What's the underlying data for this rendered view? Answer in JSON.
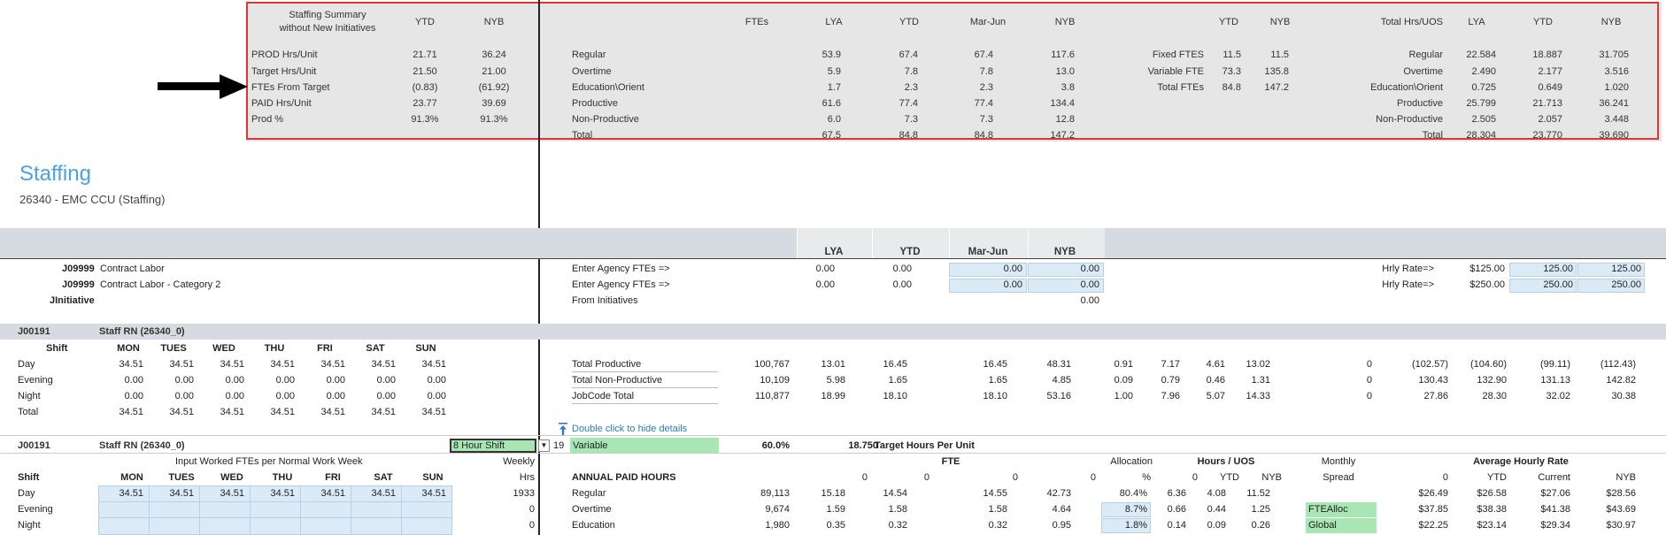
{
  "summary": {
    "left": {
      "title_line1": "Staffing Summary",
      "title_line2": "without New Initiatives",
      "col_ytd": "YTD",
      "col_nyb": "NYB",
      "rows": [
        {
          "label": "PROD Hrs/Unit",
          "ytd": "21.71",
          "nyb": "36.24"
        },
        {
          "label": "Target Hrs/Unit",
          "ytd": "21.50",
          "nyb": "21.00"
        },
        {
          "label": "FTEs From Target",
          "ytd": "(0.83)",
          "nyb": "(61.92)"
        },
        {
          "label": "PAID Hrs/Unit",
          "ytd": "23.77",
          "nyb": "39.69"
        },
        {
          "label": "Prod %",
          "ytd": "91.3%",
          "nyb": "91.3%"
        }
      ]
    },
    "ftes": {
      "headers": [
        "FTEs",
        "LYA",
        "YTD",
        "Mar-Jun",
        "NYB"
      ],
      "rows": [
        {
          "label": "Regular",
          "lya": "53.9",
          "ytd": "67.4",
          "marjun": "67.4",
          "nyb": "117.6"
        },
        {
          "label": "Overtime",
          "lya": "5.9",
          "ytd": "7.8",
          "marjun": "7.8",
          "nyb": "13.0"
        },
        {
          "label": "Education\\Orient",
          "lya": "1.7",
          "ytd": "2.3",
          "marjun": "2.3",
          "nyb": "3.8"
        },
        {
          "label": "Productive",
          "lya": "61.6",
          "ytd": "77.4",
          "marjun": "77.4",
          "nyb": "134.4"
        },
        {
          "label": "Non-Productive",
          "lya": "6.0",
          "ytd": "7.3",
          "marjun": "7.3",
          "nyb": "12.8"
        },
        {
          "label": "Total",
          "lya": "67.5",
          "ytd": "84.8",
          "marjun": "84.8",
          "nyb": "147.2"
        }
      ]
    },
    "fixedvar": {
      "headers": [
        "YTD",
        "NYB"
      ],
      "rows": [
        {
          "label": "Fixed FTES",
          "ytd": "11.5",
          "nyb": "11.5"
        },
        {
          "label": "Variable FTE",
          "ytd": "73.3",
          "nyb": "135.8"
        },
        {
          "label": "Total FTEs",
          "ytd": "84.8",
          "nyb": "147.2"
        }
      ]
    },
    "hrsuos": {
      "headers": [
        "Total Hrs/UOS",
        "LYA",
        "YTD",
        "NYB"
      ],
      "rows": [
        {
          "label": "Regular",
          "lya": "22.584",
          "ytd": "18.887",
          "nyb": "31.705"
        },
        {
          "label": "Overtime",
          "lya": "2.490",
          "ytd": "2.177",
          "nyb": "3.516"
        },
        {
          "label": "Education\\Orient",
          "lya": "0.725",
          "ytd": "0.649",
          "nyb": "1.020"
        },
        {
          "label": "Productive",
          "lya": "25.799",
          "ytd": "21.713",
          "nyb": "36.241"
        },
        {
          "label": "Non-Productive",
          "lya": "2.505",
          "ytd": "2.057",
          "nyb": "3.448"
        },
        {
          "label": "Total",
          "lya": "28.304",
          "ytd": "23.770",
          "nyb": "39.690"
        }
      ]
    }
  },
  "page": {
    "title": "Staffing",
    "subtitle": "26340 - EMC CCU (Staffing)"
  },
  "band_headers": [
    "LYA",
    "YTD",
    "Mar-Jun",
    "NYB"
  ],
  "contract": {
    "rows": [
      {
        "code": "J09999",
        "name": "Contract Labor",
        "enter": "Enter Agency FTEs =>",
        "lya": "0.00",
        "ytd": "0.00",
        "marjun": "0.00",
        "nyb": "0.00",
        "rate_label": "Hrly Rate=>",
        "rate": "$125.00",
        "r1": "125.00",
        "r2": "125.00"
      },
      {
        "code": "J09999",
        "name": "Contract Labor - Category 2",
        "enter": "Enter Agency FTEs =>",
        "lya": "0.00",
        "ytd": "0.00",
        "marjun": "0.00",
        "nyb": "0.00",
        "rate_label": "Hrly Rate=>",
        "rate": "$250.00",
        "r1": "250.00",
        "r2": "250.00"
      }
    ],
    "initiative_label": "JInitiative",
    "from_initiatives": "From Initiatives",
    "from_initiatives_value": "0.00"
  },
  "job1": {
    "code": "J00191",
    "name": "Staff RN (26340_0)",
    "shift_header": "Shift",
    "days": [
      "MON",
      "TUES",
      "WED",
      "THU",
      "FRI",
      "SAT",
      "SUN"
    ],
    "rows": [
      {
        "shift": "Day",
        "vals": [
          "34.51",
          "34.51",
          "34.51",
          "34.51",
          "34.51",
          "34.51",
          "34.51"
        ]
      },
      {
        "shift": "Evening",
        "vals": [
          "0.00",
          "0.00",
          "0.00",
          "0.00",
          "0.00",
          "0.00",
          "0.00"
        ]
      },
      {
        "shift": "Night",
        "vals": [
          "0.00",
          "0.00",
          "0.00",
          "0.00",
          "0.00",
          "0.00",
          "0.00"
        ]
      },
      {
        "shift": "Total",
        "vals": [
          "34.51",
          "34.51",
          "34.51",
          "34.51",
          "34.51",
          "34.51",
          "34.51"
        ]
      }
    ],
    "totals": [
      {
        "label": "Total Productive",
        "hrs": "100,767",
        "c1": "13.01",
        "c2": "16.45",
        "c3": "16.45",
        "c4": "48.31",
        "c5": "0.91",
        "c6": "7.17",
        "c7": "4.61",
        "c8": "13.02",
        "c9": "0",
        "c10": "(102.57)",
        "c11": "(104.60)",
        "c12": "(99.11)",
        "c13": "(112.43)"
      },
      {
        "label": "Total Non-Productive",
        "hrs": "10,109",
        "c1": "5.98",
        "c2": "1.65",
        "c3": "1.65",
        "c4": "4.85",
        "c5": "0.09",
        "c6": "0.79",
        "c7": "0.46",
        "c8": "1.31",
        "c9": "0",
        "c10": "130.43",
        "c11": "132.90",
        "c12": "131.13",
        "c13": "142.82"
      },
      {
        "label": "JobCode Total",
        "hrs": "110,877",
        "c1": "18.99",
        "c2": "18.10",
        "c3": "18.10",
        "c4": "53.16",
        "c5": "1.00",
        "c6": "7.96",
        "c7": "5.07",
        "c8": "14.33",
        "c9": "0",
        "c10": "27.86",
        "c11": "28.30",
        "c12": "32.02",
        "c13": "30.38"
      }
    ],
    "hide_details": "Double click to hide details"
  },
  "job2": {
    "code": "J00191",
    "name": "Staff RN (26340_0)",
    "shift_select": "8 Hour Shift",
    "shift_num": "19",
    "variable": "Variable",
    "pct": "60.0%",
    "target_val": "18.750",
    "target_label": "Target Hours Per Unit",
    "input_caption": "Input Worked FTEs per Normal Work Week",
    "weekly": "Weekly",
    "hrs": "Hrs",
    "shift_header": "Shift",
    "days": [
      "MON",
      "TUES",
      "WED",
      "THU",
      "FRI",
      "SAT",
      "SUN"
    ],
    "rows": [
      {
        "shift": "Day",
        "vals": [
          "34.51",
          "34.51",
          "34.51",
          "34.51",
          "34.51",
          "34.51",
          "34.51"
        ],
        "weekly": "1933"
      },
      {
        "shift": "Evening",
        "vals": [
          "",
          "",
          "",
          "",
          "",
          "",
          ""
        ],
        "weekly": "0"
      },
      {
        "shift": "Night",
        "vals": [
          "",
          "",
          "",
          "",
          "",
          "",
          ""
        ],
        "weekly": "0"
      }
    ],
    "annual_label": "ANNUAL PAID HOURS",
    "fte_label": "FTE",
    "allocation_label": "Allocation",
    "hours_uos_label": "Hours / UOS",
    "monthly_label": "Monthly",
    "spread_label": "Spread",
    "avg_rate_label": "Average Hourly Rate",
    "sub_headers": {
      "f1": "0",
      "f2": "0",
      "f3": "0",
      "f4": "0",
      "pct": "%",
      "h1": "0",
      "h2": "YTD",
      "h3": "NYB",
      "a1": "0",
      "a2": "YTD",
      "a3": "Current",
      "a4": "NYB"
    },
    "annual_rows": [
      {
        "label": "Regular",
        "hrs": "89,113",
        "f1": "15.18",
        "f2": "14.54",
        "f3": "14.55",
        "f4": "42.73",
        "alloc": "80.4%",
        "h1": "6.36",
        "h2": "4.08",
        "h3": "11.52",
        "spread": "",
        "a1": "$26.49",
        "a2": "$26.58",
        "a3": "$27.06",
        "a4": "$28.56"
      },
      {
        "label": "Overtime",
        "hrs": "9,674",
        "f1": "1.59",
        "f2": "1.58",
        "f3": "1.58",
        "f4": "4.64",
        "alloc": "8.7%",
        "h1": "0.66",
        "h2": "0.44",
        "h3": "1.25",
        "spread": "FTEAlloc",
        "a1": "$37.85",
        "a2": "$38.38",
        "a3": "$41.38",
        "a4": "$43.69"
      },
      {
        "label": "Education",
        "hrs": "1,980",
        "f1": "0.35",
        "f2": "0.32",
        "f3": "0.32",
        "f4": "0.95",
        "alloc": "1.8%",
        "h1": "0.14",
        "h2": "0.09",
        "h3": "0.26",
        "spread": "Global",
        "a1": "$22.25",
        "a2": "$23.14",
        "a3": "$29.34",
        "a4": "$30.97"
      }
    ]
  }
}
